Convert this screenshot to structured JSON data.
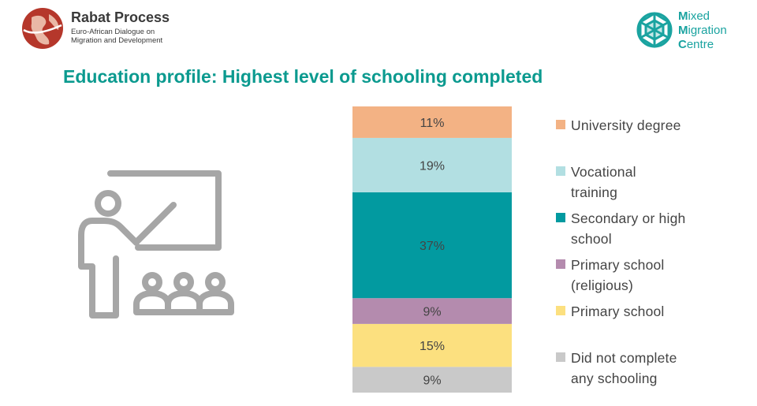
{
  "logos": {
    "rabat": {
      "title": "Rabat Process",
      "subtitle_line1": "Euro-African Dialogue on",
      "subtitle_line2": "Migration and Development"
    },
    "mmc": {
      "line1_initial": "M",
      "line1_rest": "ixed",
      "line2_initial": "M",
      "line2_rest": "igration",
      "line3_initial": "C",
      "line3_rest": "entre"
    }
  },
  "title": "Education profile: Highest level of schooling completed",
  "chart_data": {
    "type": "bar",
    "stacked": true,
    "ylim": [
      0,
      100
    ],
    "unit": "%",
    "segments_bottom_to_top": [
      {
        "name": "Did not complete any schooling",
        "value": 9,
        "label": "9%",
        "color": "#c9c9c9"
      },
      {
        "name": "Primary school",
        "value": 15,
        "label": "15%",
        "color": "#fce07f"
      },
      {
        "name": "Primary school (religious)",
        "value": 9,
        "label": "9%",
        "color": "#b48bae"
      },
      {
        "name": "Secondary or high school",
        "value": 37,
        "label": "37%",
        "color": "#029aa0"
      },
      {
        "name": "Vocational training",
        "value": 19,
        "label": "19%",
        "color": "#b2dfe2"
      },
      {
        "name": "University degree",
        "value": 11,
        "label": "11%",
        "color": "#f3b284"
      }
    ]
  },
  "legend": [
    {
      "line1": "University degree",
      "line2": "",
      "color": "#f3b284"
    },
    {
      "line1": "Vocational",
      "line2": "training",
      "color": "#b2dfe2"
    },
    {
      "line1": "Secondary or high",
      "line2": "school",
      "color": "#029aa0"
    },
    {
      "line1": "Primary school",
      "line2": "(religious)",
      "color": "#b48bae"
    },
    {
      "line1": "Primary school",
      "line2": "",
      "color": "#fce07f"
    },
    {
      "line1": "Did not complete",
      "line2": "any schooling",
      "color": "#c9c9c9"
    }
  ],
  "illustration": {
    "icon": "teacher-classroom-icon",
    "color": "#a6a6a6"
  }
}
